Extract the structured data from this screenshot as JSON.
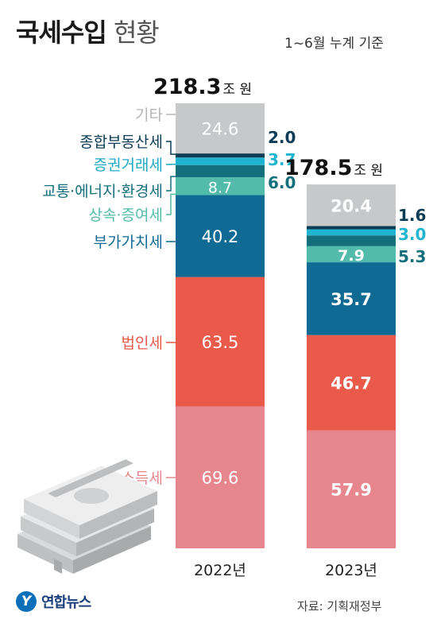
{
  "header": {
    "title_bold": "국세수입",
    "title_light": "현황",
    "subtitle": "1~6월 누계 기준"
  },
  "footer": {
    "source": "자료: 기획재정부",
    "logo_text": "연합뉴스",
    "logo_mark": "Y"
  },
  "colors": {
    "기타": "#c7c8ca",
    "종합부동산세": "#0d3c55",
    "증권거래세": "#1fb5d0",
    "교통·에너지·환경세": "#146f7c",
    "상속·증여세": "#52bba9",
    "부가가치세": "#0f6a94",
    "법인세": "#e95a4b",
    "소득세": "#e8868e"
  },
  "chart_data": {
    "type": "bar",
    "stacked": true,
    "categories": [
      "2022년",
      "2023년"
    ],
    "totals": [
      218.3,
      178.5
    ],
    "total_unit": "조 원",
    "series": [
      {
        "name": "소득세",
        "values": [
          69.6,
          57.9
        ]
      },
      {
        "name": "법인세",
        "values": [
          63.5,
          46.7
        ]
      },
      {
        "name": "부가가치세",
        "values": [
          40.2,
          35.7
        ]
      },
      {
        "name": "상속·증여세",
        "values": [
          8.7,
          7.9
        ]
      },
      {
        "name": "교통·에너지·환경세",
        "values": [
          6.0,
          5.3
        ]
      },
      {
        "name": "증권거래세",
        "values": [
          3.7,
          3.0
        ]
      },
      {
        "name": "종합부동산세",
        "values": [
          2.0,
          1.6
        ]
      },
      {
        "name": "기타",
        "values": [
          24.6,
          20.4
        ]
      }
    ]
  }
}
